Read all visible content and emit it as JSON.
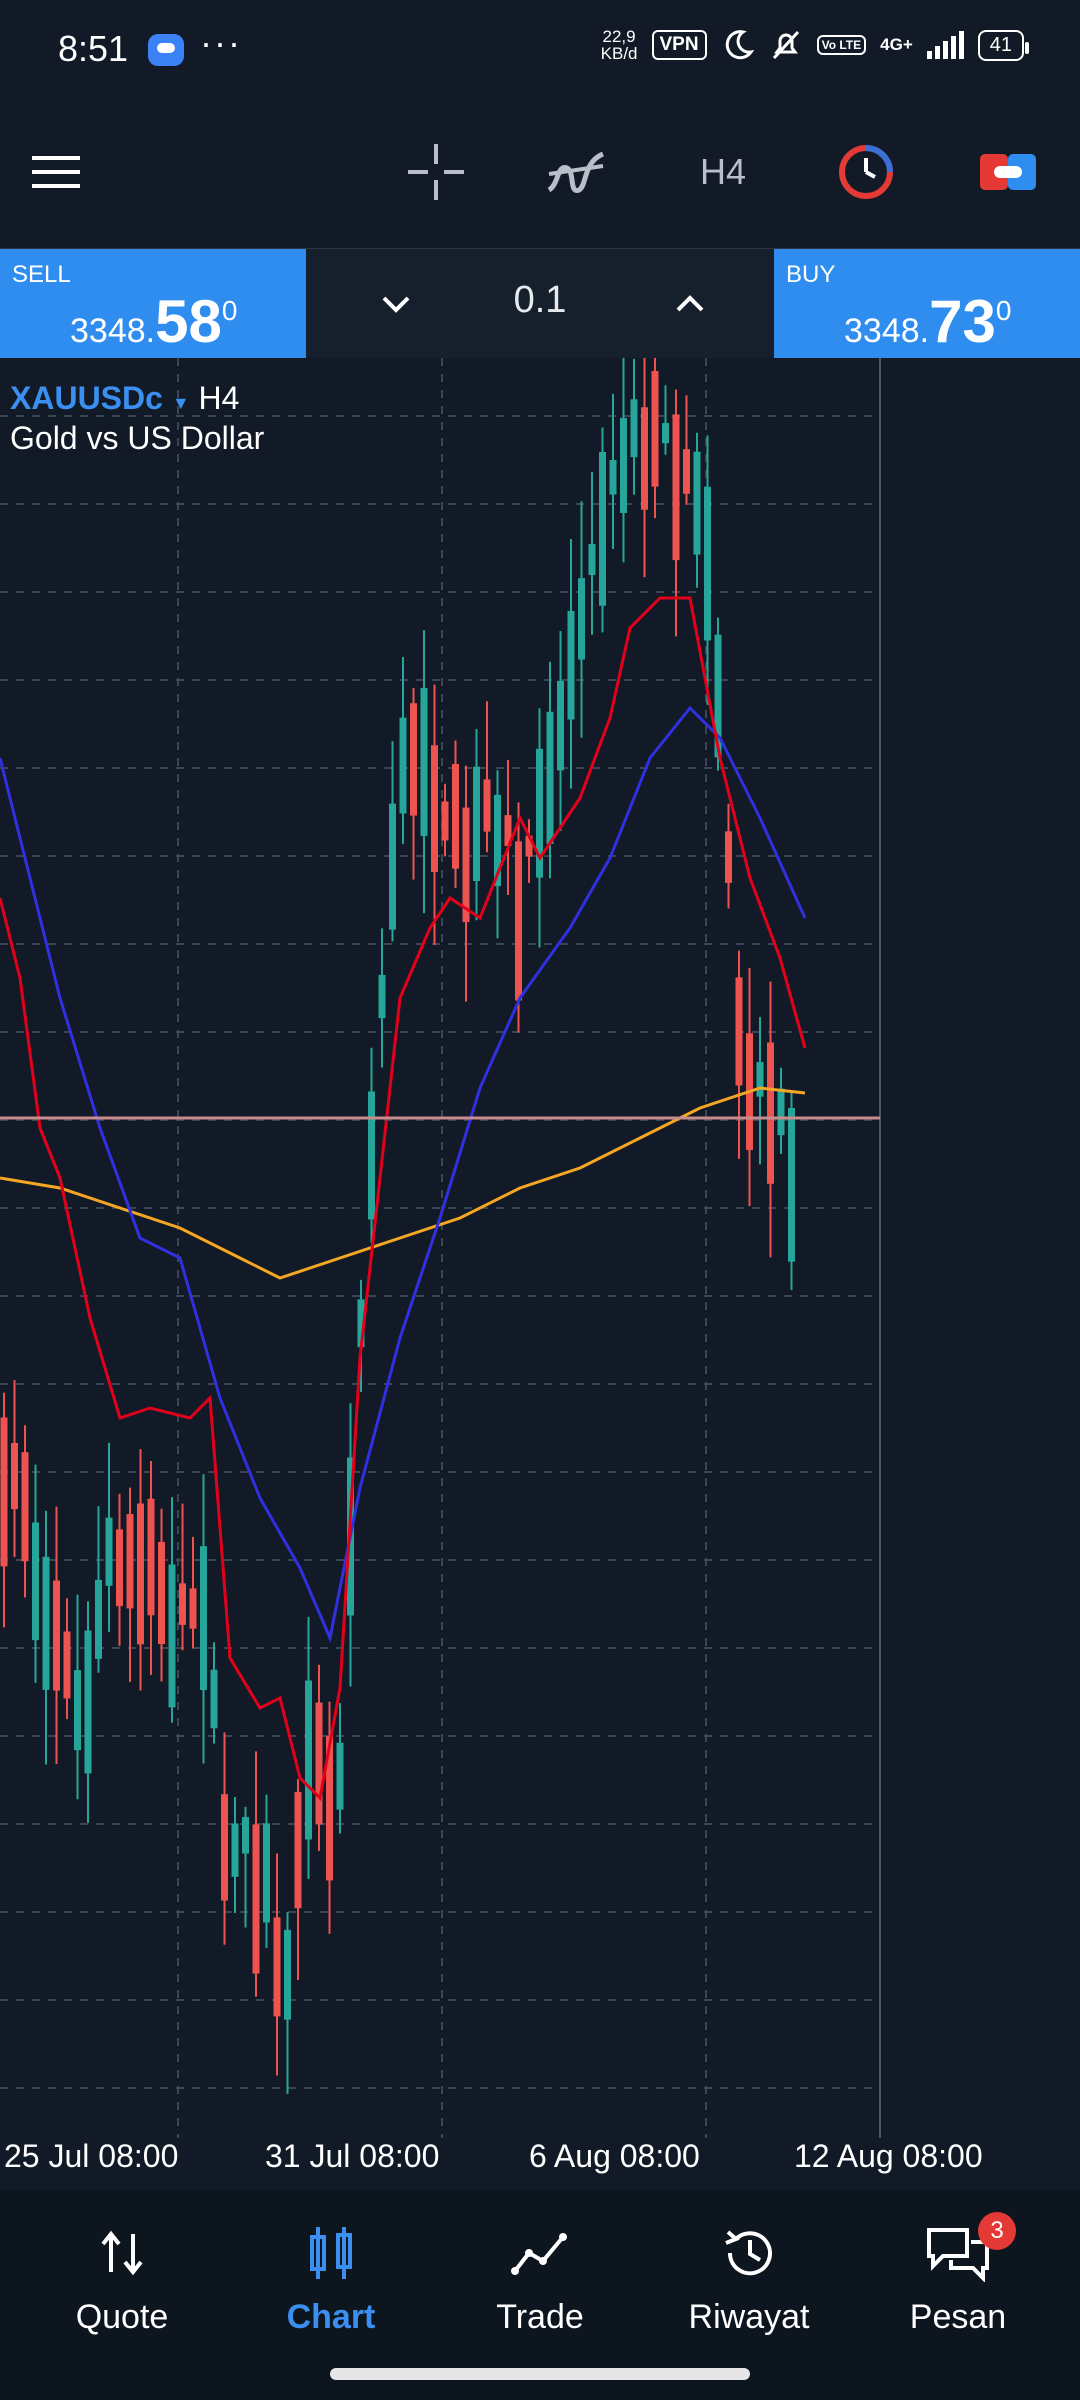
{
  "status_bar": {
    "time": "8:51",
    "dots": "···",
    "net_speed_value": "22,9",
    "net_speed_unit": "KB/d",
    "vpn": "VPN",
    "volte": "Vo LTE",
    "network": "4G+",
    "battery": "41"
  },
  "toolbar": {
    "timeframe": "H4",
    "icons": [
      "menu-icon",
      "crosshair-icon",
      "indicators-icon",
      "timeframe",
      "clock-icon",
      "toggle-icon"
    ]
  },
  "trade_panel": {
    "sell_label": "SELL",
    "sell_price_small": "3348.",
    "sell_price_big": "58",
    "sell_price_sup": "0",
    "lot": "0.1",
    "buy_label": "BUY",
    "buy_price_small": "3348.",
    "buy_price_big": "73",
    "buy_price_sup": "0"
  },
  "chart": {
    "symbol": "XAUUSDc",
    "timeframe": "H4",
    "description": "Gold vs US Dollar",
    "date_labels": [
      "25 Jul 08:00",
      "31 Jul 08:00",
      "6 Aug 08:00",
      "12 Aug 08:00"
    ],
    "colors": {
      "bull": "#26a69a",
      "bear": "#ef5350",
      "ma_fast": "#e3001b",
      "ma_slow": "#3030e0",
      "ma_long": "#f5a623",
      "price_line": "#c98c8c",
      "grid": "#3a4655"
    }
  },
  "chart_data": {
    "type": "candlestick",
    "x": [
      "25 Jul 08:00",
      "31 Jul 08:00",
      "6 Aug 08:00",
      "12 Aug 08:00"
    ],
    "current_price": 3348.58
  },
  "bottom_nav": {
    "items": [
      {
        "label": "Quote",
        "icon": "quote-icon"
      },
      {
        "label": "Chart",
        "icon": "chart-icon"
      },
      {
        "label": "Trade",
        "icon": "trade-icon"
      },
      {
        "label": "Riwayat",
        "icon": "history-icon"
      },
      {
        "label": "Pesan",
        "icon": "messages-icon"
      }
    ],
    "messages_badge": "3"
  }
}
